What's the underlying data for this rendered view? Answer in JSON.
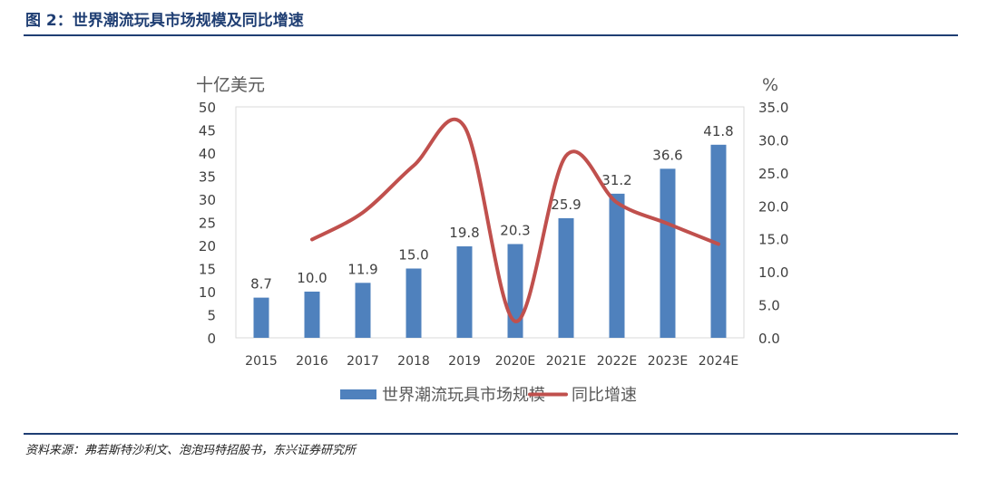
{
  "figure": {
    "title": "图 2：世界潮流玩具市场规模及同比增速",
    "source": "资料来源：弗若斯特沙利文、泡泡玛特招股书，东兴证券研究所"
  },
  "colors": {
    "bar": "#4f81bd",
    "line": "#c0504d",
    "rule": "#1f3e73"
  },
  "chart_data": {
    "type": "bar",
    "categories": [
      "2015",
      "2016",
      "2017",
      "2018",
      "2019",
      "2020E",
      "2021E",
      "2022E",
      "2023E",
      "2024E"
    ],
    "series": [
      {
        "name": "世界潮流玩具市场规模",
        "type": "bar",
        "axis": "left",
        "values": [
          8.7,
          10.0,
          11.9,
          15.0,
          19.8,
          20.3,
          25.9,
          31.2,
          36.6,
          41.8
        ],
        "labels": [
          "8.7",
          "10.0",
          "11.9",
          "15.0",
          "19.8",
          "20.3",
          "25.9",
          "31.2",
          "36.6",
          "41.8"
        ]
      },
      {
        "name": "同比增速",
        "type": "line",
        "axis": "right",
        "values": [
          null,
          14.9,
          19.0,
          26.1,
          32.0,
          2.5,
          27.6,
          20.5,
          17.3,
          14.2
        ]
      }
    ],
    "y_left": {
      "label": "十亿美元",
      "range": [
        0,
        50
      ],
      "ticks": [
        "0",
        "5",
        "10",
        "15",
        "20",
        "25",
        "30",
        "35",
        "40",
        "45",
        "50"
      ]
    },
    "y_right": {
      "label": "%",
      "range": [
        0,
        35
      ],
      "ticks": [
        "0.0",
        "5.0",
        "10.0",
        "15.0",
        "20.0",
        "25.0",
        "30.0",
        "35.0"
      ]
    },
    "grid": false,
    "legend": "bottom-center"
  }
}
